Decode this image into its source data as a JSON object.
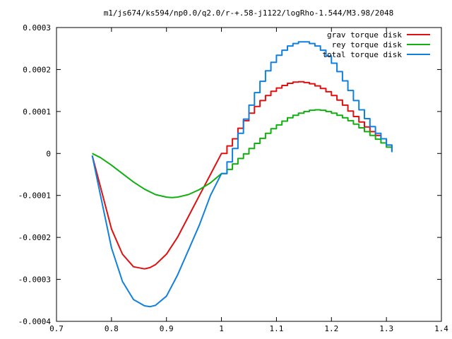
{
  "chart_data": {
    "type": "line",
    "title": "m1/js674/ks594/np0.0/q2.0/r-+.58-j1122/logRho-1.544/M3.98/2048",
    "xlabel": "",
    "ylabel": "",
    "xlim": [
      0.7,
      1.4
    ],
    "ylim": [
      -0.0004,
      0.0003
    ],
    "x_ticks": [
      "0.7",
      "0.8",
      "0.9",
      "1",
      "1.1",
      "1.2",
      "1.3",
      "1.4"
    ],
    "y_ticks": [
      "-0.0004",
      "-0.0003",
      "-0.0002",
      "-0.0001",
      "0",
      "0.0001",
      "0.0002",
      "0.0003"
    ],
    "grid": false,
    "legend_position": "top-right",
    "series": [
      {
        "name": "grav torque disk",
        "color": "#e01010",
        "style": "smooth-then-steps",
        "x": [
          0.765,
          0.78,
          0.8,
          0.82,
          0.84,
          0.86,
          0.87,
          0.88,
          0.9,
          0.92,
          0.94,
          0.96,
          0.98,
          1.0,
          1.01,
          1.02,
          1.03,
          1.04,
          1.05,
          1.06,
          1.07,
          1.08,
          1.09,
          1.1,
          1.11,
          1.12,
          1.13,
          1.14,
          1.15,
          1.16,
          1.17,
          1.18,
          1.19,
          1.2,
          1.21,
          1.22,
          1.23,
          1.24,
          1.25,
          1.26,
          1.27,
          1.28,
          1.29,
          1.3,
          1.31
        ],
        "values": [
          -5e-06,
          -8e-05,
          -0.00018,
          -0.00024,
          -0.00027,
          -0.000275,
          -0.000272,
          -0.000265,
          -0.00024,
          -0.0002,
          -0.00015,
          -0.0001,
          -5e-05,
          0.0,
          1.8e-05,
          3.5e-05,
          6e-05,
          7.8e-05,
          9.6e-05,
          0.000112,
          0.000126,
          0.000138,
          0.000148,
          0.000156,
          0.000162,
          0.000167,
          0.00017,
          0.000171,
          0.000169,
          0.000166,
          0.000161,
          0.000155,
          0.000147,
          0.000138,
          0.000127,
          0.000115,
          0.000101,
          8.8e-05,
          7.5e-05,
          6.3e-05,
          5.2e-05,
          4.3e-05,
          3.5e-05,
          2e-05,
          5e-06
        ]
      },
      {
        "name": "rey torque disk",
        "color": "#10b010",
        "style": "smooth-then-steps",
        "x": [
          0.765,
          0.78,
          0.8,
          0.82,
          0.84,
          0.86,
          0.88,
          0.9,
          0.91,
          0.92,
          0.94,
          0.96,
          0.98,
          1.0,
          1.01,
          1.02,
          1.03,
          1.04,
          1.05,
          1.06,
          1.07,
          1.08,
          1.09,
          1.1,
          1.11,
          1.12,
          1.13,
          1.14,
          1.15,
          1.16,
          1.17,
          1.18,
          1.19,
          1.2,
          1.21,
          1.22,
          1.23,
          1.24,
          1.25,
          1.26,
          1.27,
          1.28,
          1.29,
          1.3,
          1.31
        ],
        "values": [
          0.0,
          -1e-05,
          -2.8e-05,
          -4.8e-05,
          -6.8e-05,
          -8.5e-05,
          -9.8e-05,
          -0.000104,
          -0.000105,
          -0.000104,
          -9.8e-05,
          -8.6e-05,
          -7e-05,
          -4.8e-05,
          -3.8e-05,
          -2.5e-05,
          -1.2e-05,
          -1e-06,
          1.2e-05,
          2.4e-05,
          3.6e-05,
          4.8e-05,
          5.9e-05,
          6.8e-05,
          7.7e-05,
          8.5e-05,
          9.1e-05,
          9.6e-05,
          0.0001,
          0.000103,
          0.000104,
          0.000103,
          0.0001,
          9.6e-05,
          9.1e-05,
          8.5e-05,
          7.8e-05,
          7e-05,
          6.1e-05,
          5.2e-05,
          4.3e-05,
          3.4e-05,
          2.5e-05,
          1.5e-05,
          5e-06
        ]
      },
      {
        "name": "total torque disk",
        "color": "#1080e0",
        "style": "smooth-then-steps",
        "x": [
          0.765,
          0.78,
          0.8,
          0.82,
          0.84,
          0.86,
          0.87,
          0.88,
          0.9,
          0.92,
          0.94,
          0.96,
          0.98,
          1.0,
          1.01,
          1.02,
          1.03,
          1.04,
          1.05,
          1.06,
          1.07,
          1.08,
          1.09,
          1.1,
          1.11,
          1.12,
          1.13,
          1.14,
          1.15,
          1.16,
          1.17,
          1.18,
          1.19,
          1.2,
          1.21,
          1.22,
          1.23,
          1.24,
          1.25,
          1.26,
          1.27,
          1.28,
          1.29,
          1.3,
          1.31
        ],
        "values": [
          -5e-06,
          -0.0001,
          -0.000225,
          -0.000305,
          -0.000348,
          -0.000363,
          -0.000365,
          -0.000362,
          -0.00034,
          -0.00029,
          -0.00023,
          -0.00017,
          -0.0001,
          -4.8e-05,
          -2e-05,
          1.2e-05,
          4.8e-05,
          8.2e-05,
          0.000115,
          0.000145,
          0.000172,
          0.000197,
          0.000217,
          0.000234,
          0.000246,
          0.000256,
          0.000262,
          0.000266,
          0.000266,
          0.000262,
          0.000256,
          0.000246,
          0.000232,
          0.000215,
          0.000195,
          0.000173,
          0.00015,
          0.000126,
          0.000104,
          8.3e-05,
          6.4e-05,
          4.8e-05,
          3.5e-05,
          2e-05,
          3e-06
        ]
      }
    ]
  }
}
